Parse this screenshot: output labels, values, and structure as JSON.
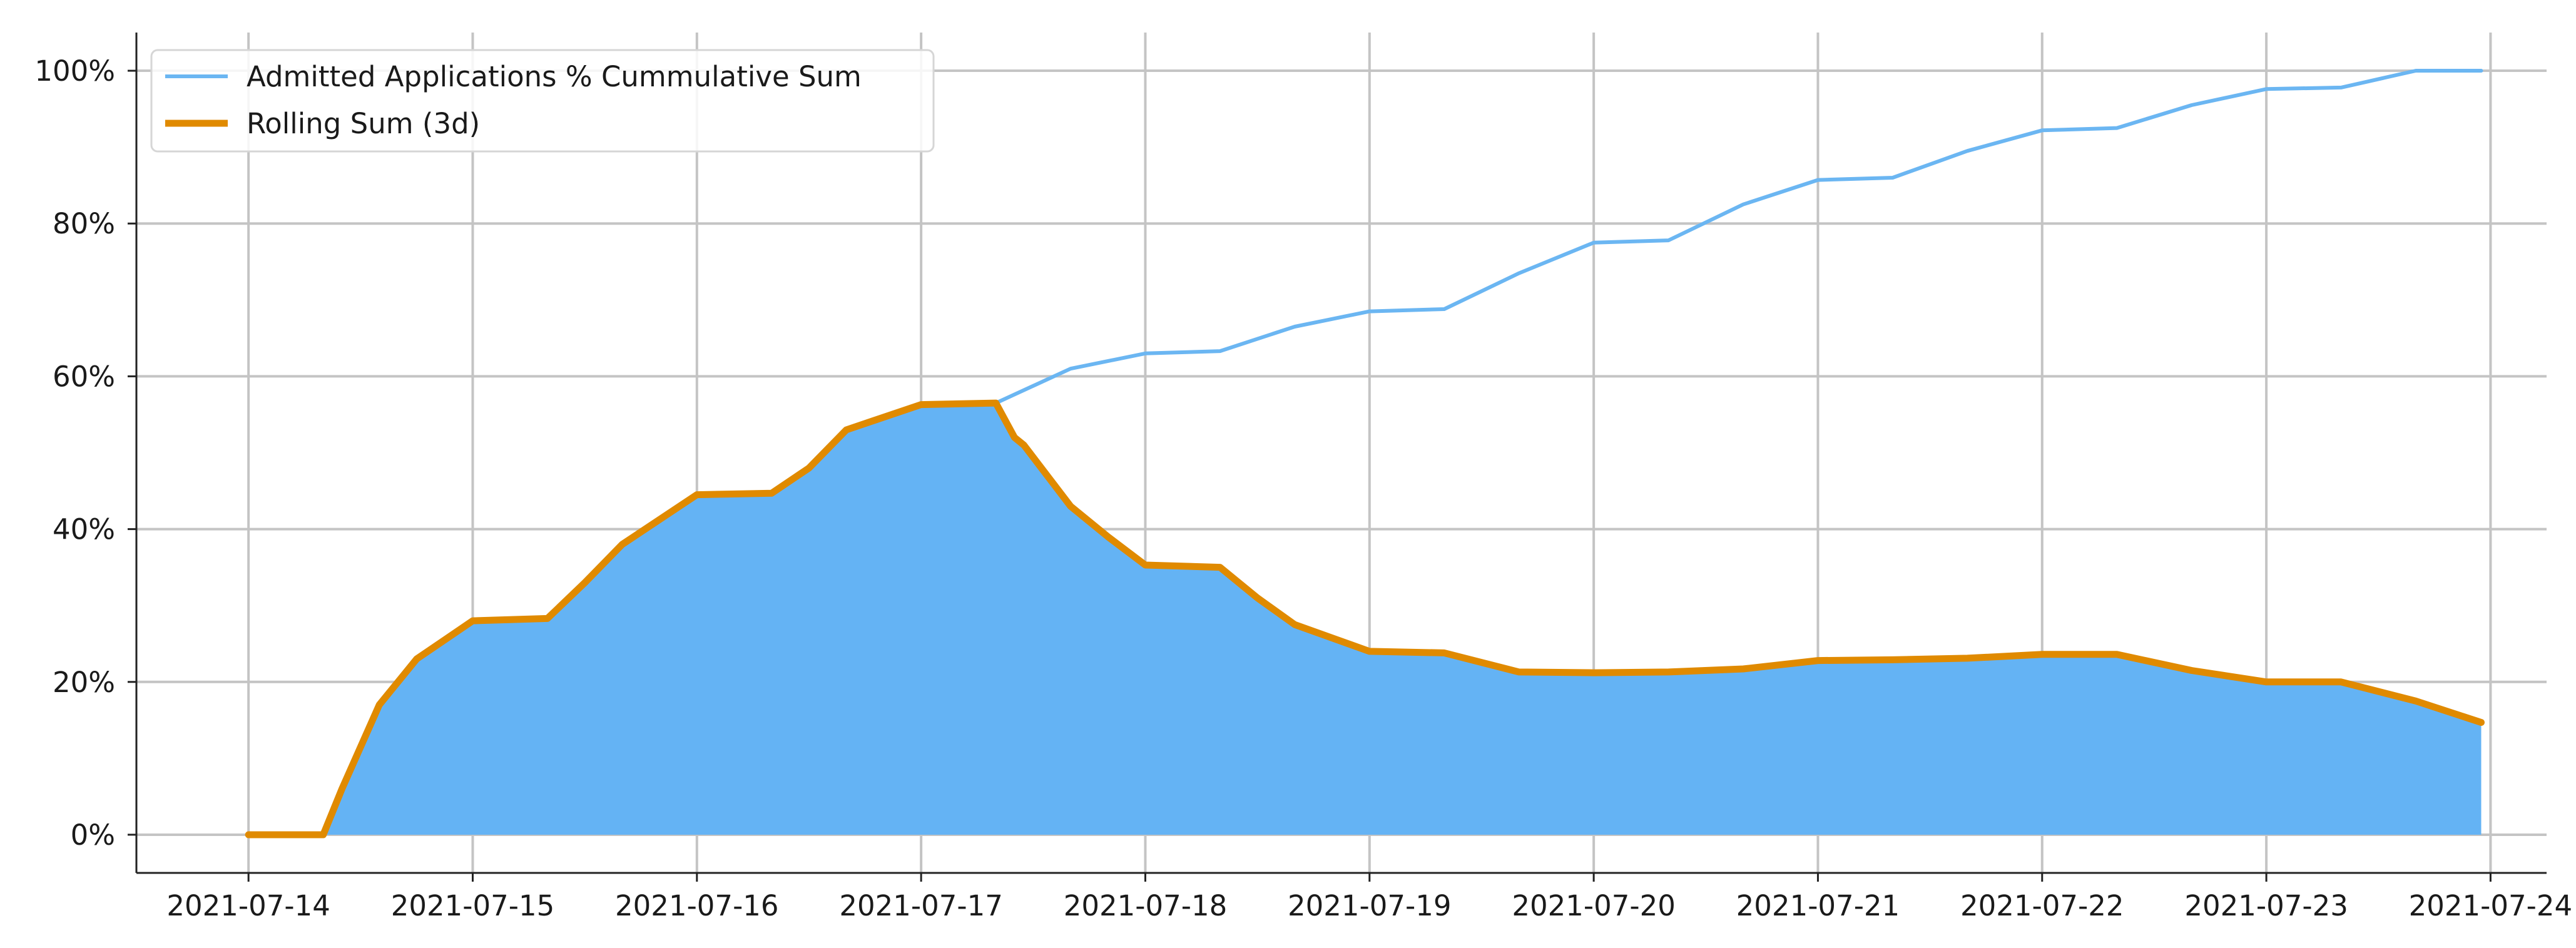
{
  "chart_data": {
    "type": "area",
    "title": "",
    "xlabel": "",
    "ylabel": "",
    "x_tick_labels": [
      "2021-07-14",
      "2021-07-15",
      "2021-07-16",
      "2021-07-17",
      "2021-07-18",
      "2021-07-19",
      "2021-07-20",
      "2021-07-21",
      "2021-07-22",
      "2021-07-23",
      "2021-07-24"
    ],
    "y_tick_labels": [
      "0%",
      "20%",
      "40%",
      "60%",
      "80%",
      "100%"
    ],
    "y_ticks": [
      0,
      20,
      40,
      60,
      80,
      100
    ],
    "xlim": [
      "2021-07-13 12:00",
      "2021-07-24 06:00"
    ],
    "ylim": [
      -5,
      105
    ],
    "grid": true,
    "legend_position": "top-left",
    "series": [
      {
        "name": "Admitted Applications % Cummulative Sum",
        "color": "#6bb6f2",
        "style": "line",
        "points": [
          [
            "2021-07-14 00:00",
            0
          ],
          [
            "2021-07-14 08:00",
            0
          ],
          [
            "2021-07-14 10:00",
            6
          ],
          [
            "2021-07-14 14:00",
            17
          ],
          [
            "2021-07-14 18:00",
            23
          ],
          [
            "2021-07-15 00:00",
            28
          ],
          [
            "2021-07-15 08:00",
            28.3
          ],
          [
            "2021-07-15 12:00",
            33
          ],
          [
            "2021-07-15 16:00",
            38
          ],
          [
            "2021-07-16 00:00",
            44.5
          ],
          [
            "2021-07-16 08:00",
            44.7
          ],
          [
            "2021-07-16 12:00",
            48
          ],
          [
            "2021-07-16 16:00",
            53
          ],
          [
            "2021-07-17 00:00",
            56.3
          ],
          [
            "2021-07-17 08:00",
            56.5
          ],
          [
            "2021-07-17 16:00",
            61
          ],
          [
            "2021-07-18 00:00",
            63
          ],
          [
            "2021-07-18 08:00",
            63.3
          ],
          [
            "2021-07-18 16:00",
            66.5
          ],
          [
            "2021-07-19 00:00",
            68.5
          ],
          [
            "2021-07-19 08:00",
            68.8
          ],
          [
            "2021-07-19 16:00",
            73.5
          ],
          [
            "2021-07-20 00:00",
            77.5
          ],
          [
            "2021-07-20 08:00",
            77.8
          ],
          [
            "2021-07-20 16:00",
            82.5
          ],
          [
            "2021-07-21 00:00",
            85.7
          ],
          [
            "2021-07-21 08:00",
            86
          ],
          [
            "2021-07-21 16:00",
            89.5
          ],
          [
            "2021-07-22 00:00",
            92.2
          ],
          [
            "2021-07-22 08:00",
            92.5
          ],
          [
            "2021-07-22 16:00",
            95.5
          ],
          [
            "2021-07-23 00:00",
            97.6
          ],
          [
            "2021-07-23 08:00",
            97.8
          ],
          [
            "2021-07-23 16:00",
            100
          ],
          [
            "2021-07-23 23:00",
            100
          ]
        ]
      },
      {
        "name": "Rolling Sum (3d)",
        "color": "#e08a00",
        "fill_color": "#64b3f4",
        "style": "line-with-area",
        "points": [
          [
            "2021-07-14 00:00",
            0
          ],
          [
            "2021-07-14 08:00",
            0
          ],
          [
            "2021-07-14 10:00",
            6
          ],
          [
            "2021-07-14 14:00",
            17
          ],
          [
            "2021-07-14 18:00",
            23
          ],
          [
            "2021-07-15 00:00",
            28
          ],
          [
            "2021-07-15 08:00",
            28.3
          ],
          [
            "2021-07-15 12:00",
            33
          ],
          [
            "2021-07-15 16:00",
            38
          ],
          [
            "2021-07-16 00:00",
            44.5
          ],
          [
            "2021-07-16 08:00",
            44.7
          ],
          [
            "2021-07-16 12:00",
            48
          ],
          [
            "2021-07-16 16:00",
            53
          ],
          [
            "2021-07-17 00:00",
            56.3
          ],
          [
            "2021-07-17 08:00",
            56.5
          ],
          [
            "2021-07-17 10:00",
            52
          ],
          [
            "2021-07-17 11:00",
            51
          ],
          [
            "2021-07-17 16:00",
            43
          ],
          [
            "2021-07-17 20:00",
            39
          ],
          [
            "2021-07-18 00:00",
            35.3
          ],
          [
            "2021-07-18 08:00",
            35
          ],
          [
            "2021-07-18 12:00",
            31
          ],
          [
            "2021-07-18 16:00",
            27.5
          ],
          [
            "2021-07-19 00:00",
            24
          ],
          [
            "2021-07-19 08:00",
            23.8
          ],
          [
            "2021-07-19 16:00",
            21.3
          ],
          [
            "2021-07-20 00:00",
            21.2
          ],
          [
            "2021-07-20 08:00",
            21.3
          ],
          [
            "2021-07-20 16:00",
            21.7
          ],
          [
            "2021-07-21 00:00",
            22.8
          ],
          [
            "2021-07-21 08:00",
            22.9
          ],
          [
            "2021-07-21 16:00",
            23.1
          ],
          [
            "2021-07-22 00:00",
            23.6
          ],
          [
            "2021-07-22 08:00",
            23.6
          ],
          [
            "2021-07-22 16:00",
            21.5
          ],
          [
            "2021-07-23 00:00",
            20
          ],
          [
            "2021-07-23 08:00",
            20
          ],
          [
            "2021-07-23 16:00",
            17.5
          ],
          [
            "2021-07-23 23:00",
            14.7
          ]
        ]
      }
    ]
  }
}
